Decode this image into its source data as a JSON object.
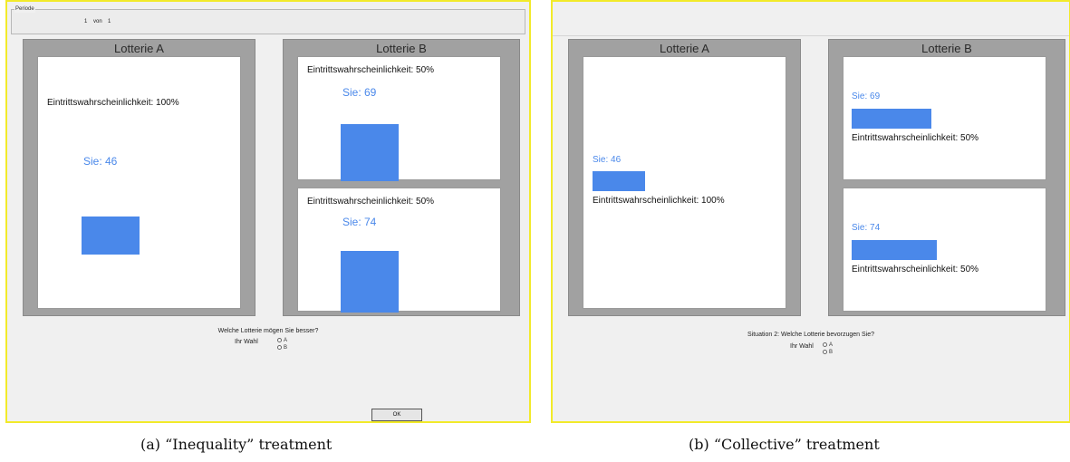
{
  "panel_a": {
    "periode": {
      "label": "Periode",
      "current": "1",
      "word": "von",
      "total": "1"
    },
    "lottery_a": {
      "title": "Lotterie A",
      "box": {
        "probability": "Eintrittswahrscheinlichkeit: 100%",
        "sie": "Sie: 46"
      }
    },
    "lottery_b": {
      "title": "Lotterie B",
      "box1": {
        "probability": "Eintrittswahrscheinlichkeit: 50%",
        "sie": "Sie: 69"
      },
      "box2": {
        "probability": "Eintrittswahrscheinlichkeit: 50%",
        "sie": "Sie: 74"
      }
    },
    "question": "Welche Lotterie mögen Sie besser?",
    "choice_label": "Ihr Wahl",
    "options": [
      "A",
      "B"
    ],
    "ok_label": "OK",
    "caption": "(a) “Inequality” treatment"
  },
  "panel_b": {
    "lottery_a": {
      "title": "Lotterie A",
      "box": {
        "probability": "Eintrittswahrscheinlichkeit: 100%",
        "sie": "Sie: 46"
      }
    },
    "lottery_b": {
      "title": "Lotterie B",
      "box1": {
        "probability": "Eintrittswahrscheinlichkeit: 50%",
        "sie": "Sie: 69"
      },
      "box2": {
        "probability": "Eintrittswahrscheinlichkeit: 50%",
        "sie": "Sie: 74"
      }
    },
    "question": "Situation 2: Welche Lotterie bevorzugen Sie?",
    "choice_label": "Ihr Wahl",
    "options": [
      "A",
      "B"
    ],
    "caption": "(b) “Collective” treatment"
  },
  "colors": {
    "bar": "#4a88ea",
    "frame": "#f2ea2a",
    "lottery_background": "#a1a1a1"
  }
}
